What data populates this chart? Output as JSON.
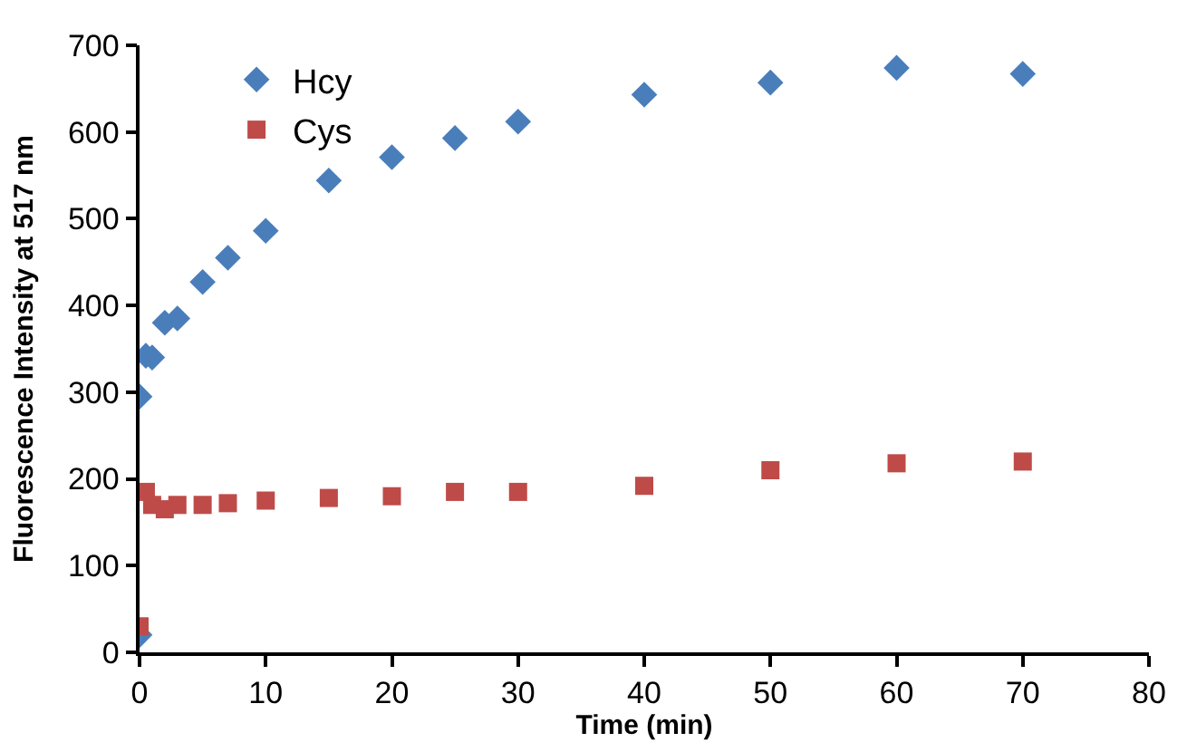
{
  "chart_data": {
    "type": "scatter",
    "xlabel": "Time (min)",
    "ylabel": "Fluorescence Intensity at 517 nm",
    "xlim": [
      0,
      80
    ],
    "xticks": [
      0,
      10,
      20,
      30,
      40,
      50,
      60,
      70,
      80
    ],
    "ylim": [
      0,
      700
    ],
    "yticks": [
      0,
      100,
      200,
      300,
      400,
      500,
      600,
      700
    ],
    "legend": "top left",
    "series": [
      {
        "name": "Hcy",
        "color": "#4a7ebb",
        "marker": "diamond",
        "x": [
          0,
          0,
          0.5,
          1,
          2,
          3,
          5,
          7,
          10,
          15,
          20,
          25,
          30,
          40,
          50,
          60,
          70
        ],
        "values": [
          20,
          295,
          342,
          340,
          380,
          385,
          427,
          455,
          486,
          544,
          571,
          593,
          612,
          643,
          657,
          674,
          667
        ]
      },
      {
        "name": "Cys",
        "color": "#be4b48",
        "marker": "square",
        "x": [
          0,
          0.5,
          1,
          2,
          3,
          5,
          7,
          10,
          15,
          20,
          25,
          30,
          40,
          50,
          60,
          70
        ],
        "values": [
          30,
          185,
          170,
          165,
          170,
          170,
          172,
          175,
          178,
          180,
          185,
          185,
          192,
          210,
          218,
          220
        ]
      }
    ]
  }
}
